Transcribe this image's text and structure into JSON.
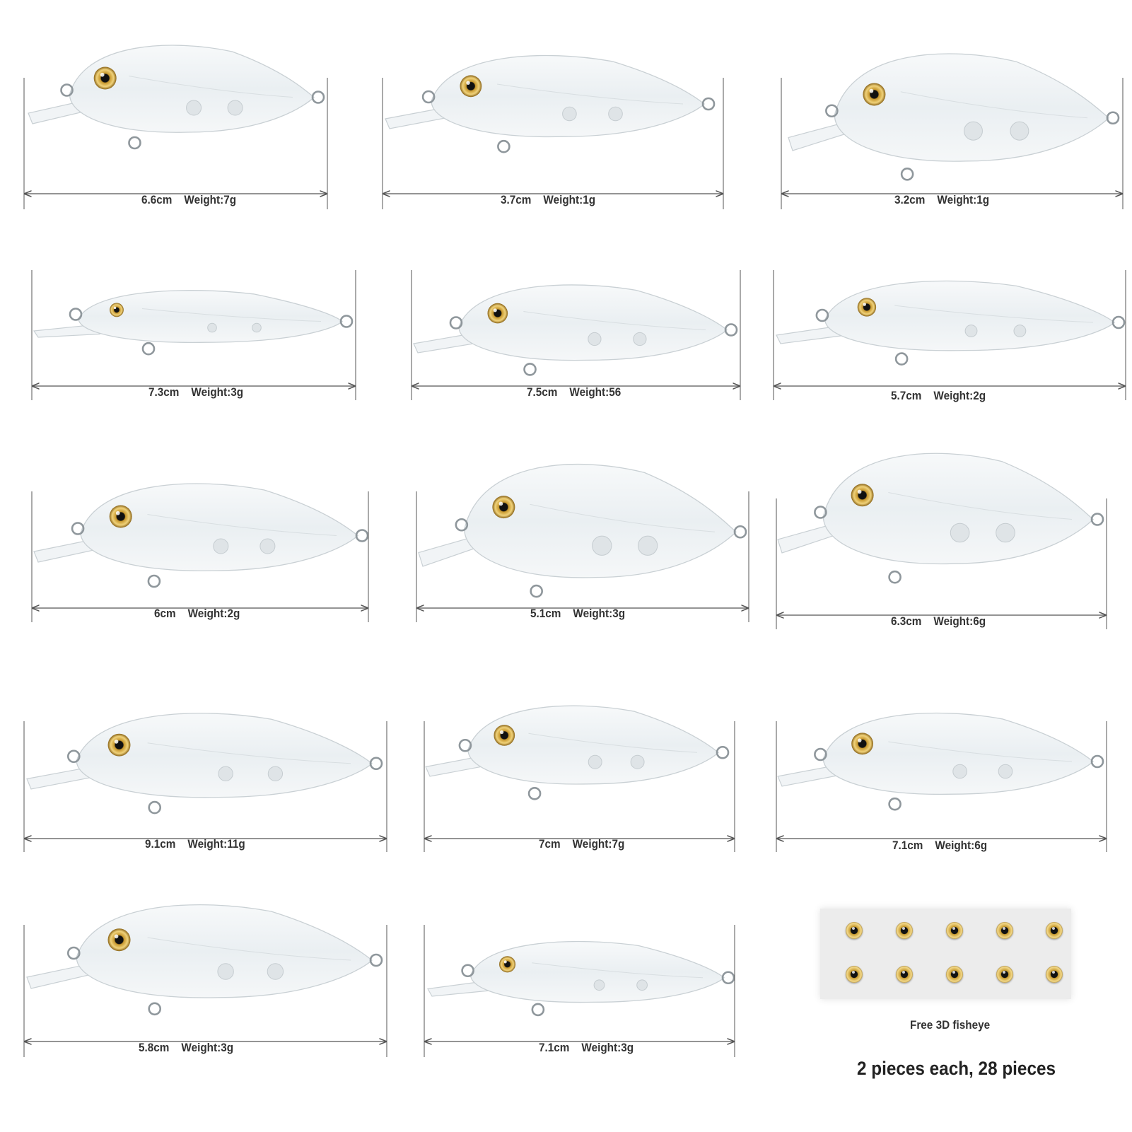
{
  "lures": [
    {
      "length": "6.6cm",
      "weight": "Weight:7g"
    },
    {
      "length": "3.7cm",
      "weight": "Weight:1g"
    },
    {
      "length": "3.2cm",
      "weight": "Weight:1g"
    },
    {
      "length": "7.3cm",
      "weight": "Weight:3g"
    },
    {
      "length": "7.5cm",
      "weight": "Weight:56"
    },
    {
      "length": "5.7cm",
      "weight": "Weight:2g"
    },
    {
      "length": "6cm",
      "weight": "Weight:2g"
    },
    {
      "length": "5.1cm",
      "weight": "Weight:3g"
    },
    {
      "length": "6.3cm",
      "weight": "Weight:6g"
    },
    {
      "length": "9.1cm",
      "weight": "Weight:11g"
    },
    {
      "length": "7cm",
      "weight": "Weight:7g"
    },
    {
      "length": "7.1cm",
      "weight": "Weight:6g"
    },
    {
      "length": "5.8cm",
      "weight": "Weight:3g"
    },
    {
      "length": "7.1cm",
      "weight": "Weight:3g"
    }
  ],
  "extras": {
    "fisheye_label": "Free 3D fisheye",
    "summary": "2 pieces each, 28 pieces"
  },
  "colors": {
    "dimension_line": "#555555",
    "lure_body": "#eef2f4",
    "lure_edge": "#c9d0d4",
    "eye_gold": "#d4a534"
  }
}
